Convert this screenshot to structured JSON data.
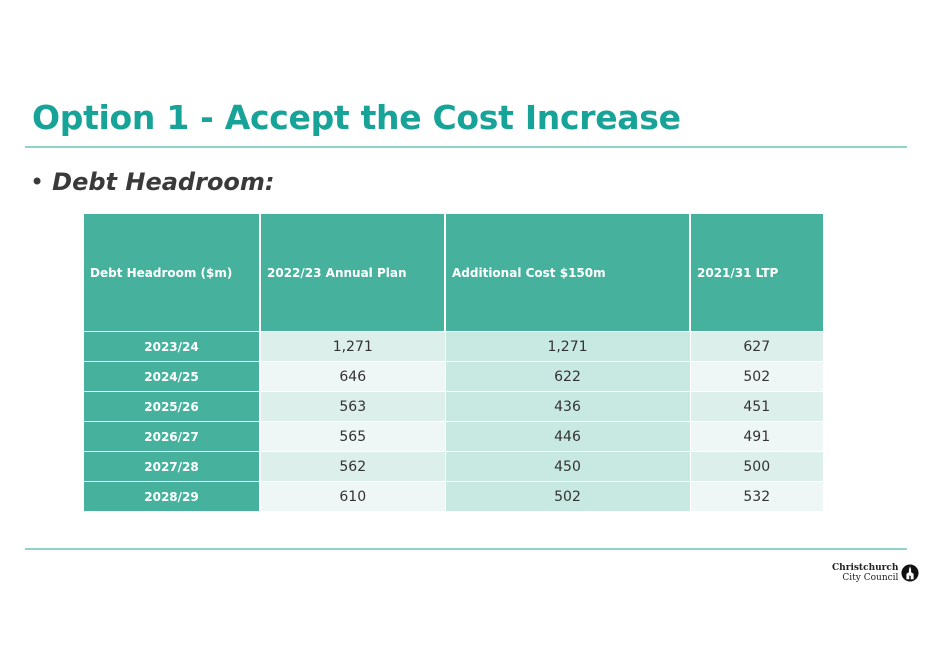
{
  "slide": {
    "title": "Option 1 - Accept the Cost Increase",
    "bullet_mark": "•",
    "bullet_text": "Debt Headroom:"
  },
  "table": {
    "headers": [
      "Debt Headroom ($m)",
      "2022/23 Annual Plan",
      "Additional Cost  $150m",
      "2021/31 LTP"
    ],
    "rows": [
      [
        "2023/24",
        "1,271",
        "1,271",
        "627"
      ],
      [
        "2024/25",
        "646",
        "622",
        "502"
      ],
      [
        "2025/26",
        "563",
        "436",
        "451"
      ],
      [
        "2026/27",
        "565",
        "446",
        "491"
      ],
      [
        "2027/28",
        "562",
        "450",
        "500"
      ],
      [
        "2028/29",
        "610",
        "502",
        "532"
      ]
    ]
  },
  "logo": {
    "line1": "Christchurch",
    "line2": "City Council",
    "icon": "cathedral-icon"
  },
  "colors": {
    "title": "#17a398",
    "header_fill": "#46b29e",
    "rule": "#8fd3c9"
  }
}
